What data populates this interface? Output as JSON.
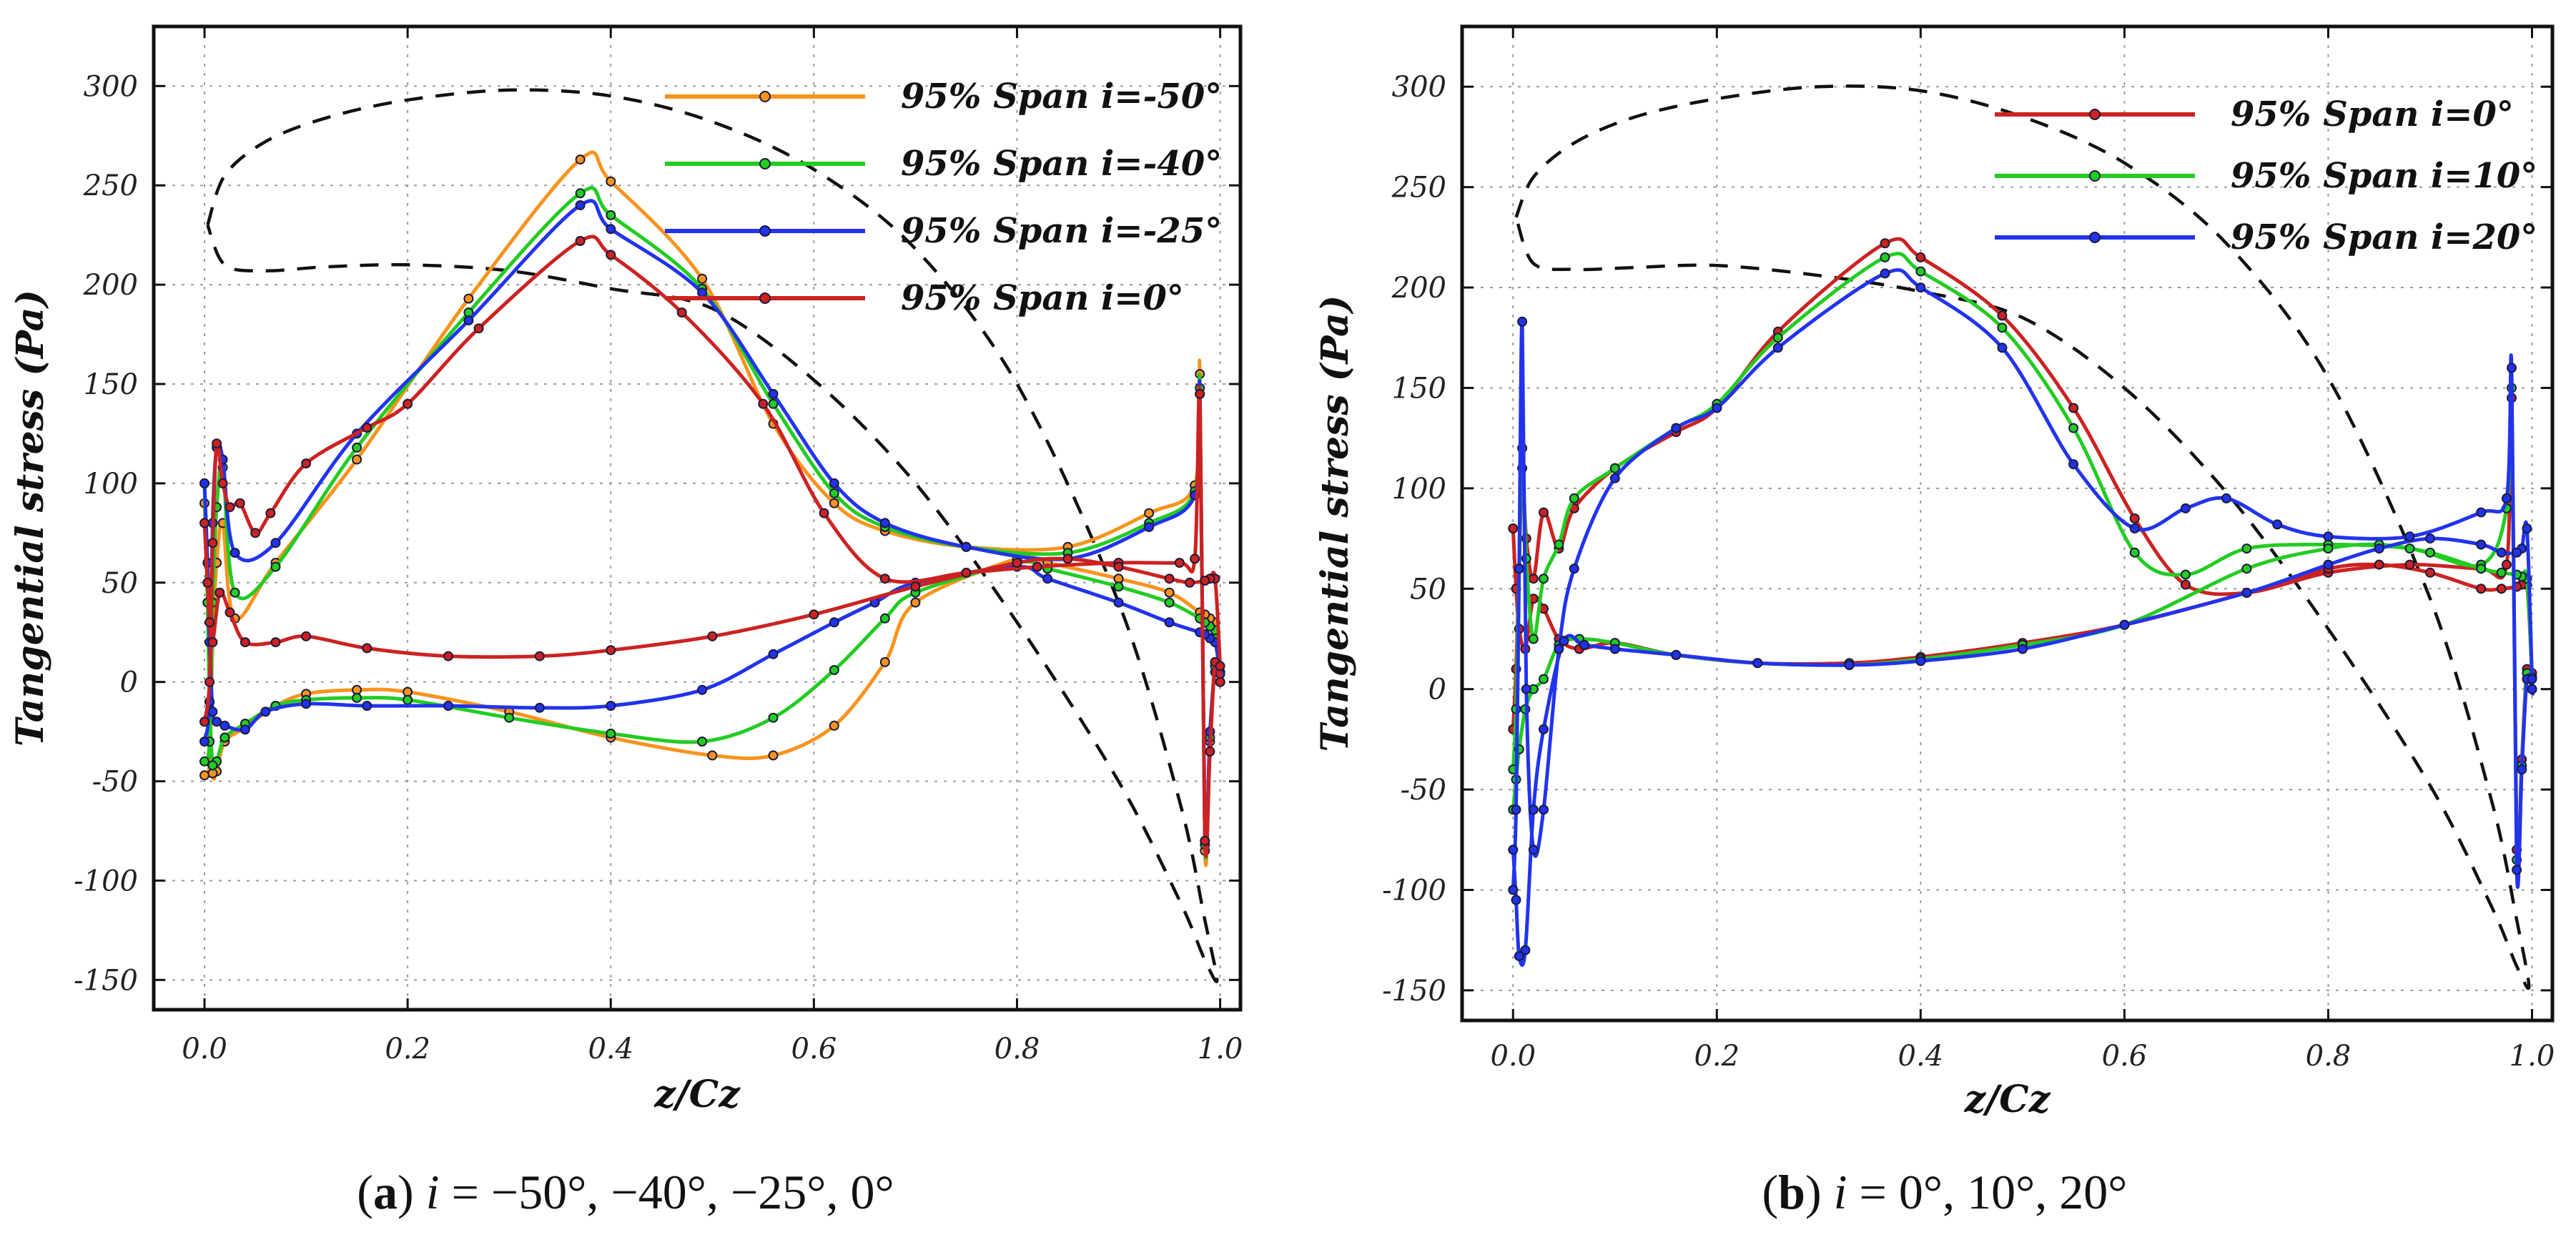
{
  "chart_data": [
    {
      "type": "line",
      "panel": "a",
      "caption": {
        "letter": "a",
        "open": "(",
        "close": ")",
        "var": "i",
        "rest": " = −50°, −40°, −25°, 0°"
      },
      "xlabel": "z/Cz",
      "ylabel": "Tangential stress (Pa)",
      "xlim": [
        -0.05,
        1.02
      ],
      "ylim": [
        -165,
        330
      ],
      "xticks": [
        0.0,
        0.2,
        0.4,
        0.6,
        0.8,
        1.0
      ],
      "xtick_labels": [
        "0.0",
        "0.2",
        "0.4",
        "0.6",
        "0.8",
        "1.0"
      ],
      "yticks": [
        -150,
        -100,
        -50,
        0,
        50,
        100,
        150,
        200,
        250,
        300
      ],
      "ytick_labels": [
        "-150",
        "-100",
        "-50",
        "0",
        "50",
        "100",
        "150",
        "200",
        "250",
        "300"
      ],
      "grid": true,
      "legend_position": "top-right",
      "profile": {
        "x": [
          0.003,
          0.02,
          0.06,
          0.12,
          0.2,
          0.3,
          0.4,
          0.5,
          0.6,
          0.7,
          0.8,
          0.9,
          0.96,
          0.985,
          0.997,
          0.985,
          0.96,
          0.9,
          0.8,
          0.7,
          0.6,
          0.5,
          0.4,
          0.3,
          0.2,
          0.12,
          0.06,
          0.02,
          0.003
        ],
        "y": [
          230,
          255,
          272,
          284,
          293,
          298,
          295,
          282,
          258,
          218,
          150,
          40,
          -60,
          -120,
          -150,
          -140,
          -110,
          -50,
          30,
          100,
          152,
          188,
          198,
          207,
          210,
          209,
          207,
          210,
          230
        ]
      },
      "series": [
        {
          "name": "95% Span i=-50°",
          "color": "#f7931e",
          "x": [
            0.0,
            0.005,
            0.008,
            0.012,
            0.018,
            0.03,
            0.07,
            0.15,
            0.26,
            0.37,
            0.4,
            0.49,
            0.56,
            0.62,
            0.67,
            0.75,
            0.85,
            0.93,
            0.975,
            0.98,
            0.985,
            0.99,
            0.995,
            1.0,
            1.0,
            0.995,
            0.99,
            0.985,
            0.98,
            0.95,
            0.9,
            0.83,
            0.8,
            0.7,
            0.67,
            0.62,
            0.56,
            0.5,
            0.4,
            0.3,
            0.2,
            0.15,
            0.1,
            0.07,
            0.04,
            0.02,
            0.012,
            0.008,
            0.005,
            0.003,
            0.0
          ],
          "y": [
            -47,
            -40,
            20,
            60,
            80,
            32,
            60,
            112,
            193,
            263,
            252,
            203,
            130,
            90,
            76,
            68,
            68,
            85,
            99,
            155,
            -85,
            -30,
            10,
            0,
            5,
            30,
            32,
            34,
            35,
            45,
            52,
            60,
            62,
            40,
            10,
            -22,
            -37,
            -37,
            -28,
            -15,
            -5,
            -4,
            -6,
            -12,
            -23,
            -30,
            -45,
            -46,
            -10,
            40,
            90
          ]
        },
        {
          "name": "95% Span i=-40°",
          "color": "#22cc22",
          "x": [
            0.0,
            0.005,
            0.008,
            0.012,
            0.018,
            0.03,
            0.07,
            0.15,
            0.26,
            0.37,
            0.4,
            0.49,
            0.56,
            0.62,
            0.67,
            0.75,
            0.85,
            0.93,
            0.975,
            0.98,
            0.985,
            0.99,
            0.995,
            1.0,
            1.0,
            0.995,
            0.99,
            0.985,
            0.98,
            0.95,
            0.9,
            0.83,
            0.8,
            0.7,
            0.67,
            0.62,
            0.56,
            0.49,
            0.4,
            0.3,
            0.2,
            0.15,
            0.1,
            0.07,
            0.04,
            0.02,
            0.012,
            0.008,
            0.005,
            0.003,
            0.0
          ],
          "y": [
            -40,
            -30,
            40,
            88,
            108,
            45,
            58,
            118,
            186,
            246,
            235,
            198,
            140,
            95,
            78,
            68,
            65,
            80,
            96,
            148,
            -82,
            -28,
            8,
            0,
            5,
            26,
            28,
            30,
            32,
            40,
            48,
            57,
            60,
            45,
            32,
            6,
            -18,
            -30,
            -26,
            -18,
            -9,
            -8,
            -9,
            -12,
            -21,
            -28,
            -40,
            -42,
            -10,
            40,
            100
          ]
        },
        {
          "name": "95% Span i=-25°",
          "color": "#2233ee",
          "x": [
            0.0,
            0.005,
            0.008,
            0.012,
            0.018,
            0.03,
            0.07,
            0.15,
            0.26,
            0.37,
            0.4,
            0.49,
            0.56,
            0.62,
            0.67,
            0.75,
            0.85,
            0.93,
            0.975,
            0.98,
            0.985,
            0.99,
            0.995,
            1.0,
            1.0,
            0.995,
            0.99,
            0.985,
            0.98,
            0.95,
            0.9,
            0.83,
            0.8,
            0.7,
            0.66,
            0.62,
            0.56,
            0.49,
            0.4,
            0.33,
            0.24,
            0.16,
            0.1,
            0.06,
            0.04,
            0.02,
            0.012,
            0.008,
            0.005,
            0.003,
            0.0
          ],
          "y": [
            -30,
            -10,
            80,
            118,
            112,
            65,
            70,
            125,
            182,
            240,
            228,
            196,
            145,
            100,
            80,
            68,
            62,
            78,
            94,
            145,
            -80,
            -25,
            5,
            0,
            4,
            20,
            22,
            24,
            25,
            30,
            40,
            52,
            58,
            50,
            40,
            30,
            14,
            -4,
            -12,
            -13,
            -12,
            -12,
            -11,
            -15,
            -24,
            -22,
            -20,
            -15,
            20,
            60,
            100
          ]
        },
        {
          "name": "95% Span i=0°",
          "color": "#cc2222",
          "x": [
            0.0,
            0.005,
            0.008,
            0.012,
            0.018,
            0.025,
            0.035,
            0.05,
            0.065,
            0.1,
            0.16,
            0.2,
            0.27,
            0.37,
            0.4,
            0.47,
            0.55,
            0.61,
            0.67,
            0.75,
            0.82,
            0.9,
            0.96,
            0.975,
            0.98,
            0.985,
            0.99,
            0.995,
            1.0,
            1.0,
            0.995,
            0.99,
            0.985,
            0.97,
            0.95,
            0.9,
            0.85,
            0.8,
            0.7,
            0.6,
            0.5,
            0.4,
            0.33,
            0.24,
            0.16,
            0.1,
            0.07,
            0.04,
            0.025,
            0.015,
            0.008,
            0.005,
            0.003,
            0.0
          ],
          "y": [
            -20,
            0,
            70,
            120,
            100,
            88,
            90,
            75,
            85,
            110,
            128,
            140,
            178,
            222,
            215,
            186,
            140,
            85,
            52,
            55,
            58,
            60,
            60,
            62,
            145,
            -80,
            -35,
            10,
            0,
            8,
            52,
            52,
            51,
            50,
            52,
            58,
            62,
            60,
            48,
            34,
            23,
            16,
            13,
            13,
            17,
            23,
            20,
            20,
            35,
            45,
            20,
            30,
            50,
            80
          ]
        }
      ]
    },
    {
      "type": "line",
      "panel": "b",
      "caption": {
        "letter": "b",
        "open": "(",
        "close": ")",
        "var": "i",
        "rest": " = 0°, 10°, 20°"
      },
      "xlabel": "z/Cz",
      "ylabel": "Tangential stress (Pa)",
      "xlim": [
        -0.05,
        1.02
      ],
      "ylim": [
        -165,
        330
      ],
      "xticks": [
        0.0,
        0.2,
        0.4,
        0.6,
        0.8,
        1.0
      ],
      "xtick_labels": [
        "0.0",
        "0.2",
        "0.4",
        "0.6",
        "0.8",
        "1.0"
      ],
      "yticks": [
        -150,
        -100,
        -50,
        0,
        50,
        100,
        150,
        200,
        250,
        300
      ],
      "ytick_labels": [
        "-150",
        "-100",
        "-50",
        "0",
        "50",
        "100",
        "150",
        "200",
        "250",
        "300"
      ],
      "grid": true,
      "legend_position": "top-right",
      "profile": {
        "x": [
          0.003,
          0.02,
          0.06,
          0.12,
          0.2,
          0.3,
          0.4,
          0.5,
          0.6,
          0.7,
          0.8,
          0.9,
          0.96,
          0.985,
          0.997,
          0.985,
          0.96,
          0.9,
          0.8,
          0.7,
          0.6,
          0.5,
          0.4,
          0.3,
          0.2,
          0.12,
          0.06,
          0.02,
          0.003
        ],
        "y": [
          235,
          255,
          272,
          285,
          294,
          300,
          298,
          285,
          262,
          222,
          155,
          45,
          -55,
          -115,
          -148,
          -138,
          -108,
          -48,
          30,
          98,
          150,
          185,
          198,
          206,
          211,
          210,
          209,
          212,
          235
        ]
      },
      "series": [
        {
          "name": "95% Span i=0°",
          "color": "#cc2222",
          "x": [
            0.0,
            0.003,
            0.006,
            0.009,
            0.013,
            0.02,
            0.03,
            0.045,
            0.06,
            0.1,
            0.16,
            0.2,
            0.26,
            0.365,
            0.4,
            0.48,
            0.55,
            0.61,
            0.66,
            0.72,
            0.8,
            0.88,
            0.95,
            0.975,
            0.98,
            0.985,
            0.99,
            0.995,
            1.0,
            1.0,
            0.995,
            0.99,
            0.985,
            0.97,
            0.95,
            0.9,
            0.85,
            0.8,
            0.72,
            0.6,
            0.5,
            0.4,
            0.33,
            0.24,
            0.16,
            0.1,
            0.065,
            0.045,
            0.03,
            0.02,
            0.012,
            0.006,
            0.003,
            0.0
          ],
          "y": [
            -20,
            10,
            60,
            110,
            75,
            55,
            88,
            70,
            90,
            110,
            128,
            140,
            178,
            222,
            215,
            186,
            140,
            85,
            52,
            48,
            58,
            62,
            60,
            62,
            145,
            -80,
            -35,
            10,
            0,
            8,
            52,
            52,
            51,
            50,
            50,
            58,
            62,
            60,
            48,
            32,
            23,
            16,
            13,
            13,
            17,
            23,
            20,
            25,
            40,
            45,
            20,
            30,
            50,
            80
          ]
        },
        {
          "name": "95% Span i=10°",
          "color": "#22cc22",
          "x": [
            0.0,
            0.003,
            0.006,
            0.009,
            0.013,
            0.02,
            0.03,
            0.045,
            0.06,
            0.1,
            0.16,
            0.2,
            0.26,
            0.365,
            0.4,
            0.48,
            0.55,
            0.61,
            0.66,
            0.72,
            0.8,
            0.88,
            0.95,
            0.975,
            0.98,
            0.985,
            0.99,
            0.995,
            1.0,
            1.0,
            0.995,
            0.99,
            0.985,
            0.97,
            0.95,
            0.9,
            0.85,
            0.8,
            0.72,
            0.6,
            0.5,
            0.4,
            0.33,
            0.24,
            0.16,
            0.1,
            0.065,
            0.045,
            0.03,
            0.02,
            0.012,
            0.006,
            0.003,
            0.0
          ],
          "y": [
            -40,
            -10,
            60,
            120,
            65,
            25,
            55,
            72,
            95,
            110,
            130,
            142,
            175,
            215,
            208,
            180,
            130,
            68,
            57,
            70,
            72,
            70,
            62,
            90,
            150,
            -85,
            -38,
            8,
            0,
            6,
            55,
            56,
            57,
            58,
            60,
            68,
            72,
            70,
            60,
            32,
            22,
            15,
            12,
            13,
            17,
            23,
            25,
            22,
            5,
            0,
            -10,
            -30,
            -45,
            -60
          ]
        },
        {
          "name": "95% Span i=20°",
          "color": "#2233ee",
          "x": [
            0.0,
            0.003,
            0.006,
            0.009,
            0.013,
            0.02,
            0.03,
            0.045,
            0.06,
            0.1,
            0.16,
            0.2,
            0.26,
            0.365,
            0.4,
            0.48,
            0.55,
            0.61,
            0.66,
            0.7,
            0.75,
            0.8,
            0.88,
            0.95,
            0.975,
            0.98,
            0.985,
            0.99,
            0.995,
            1.0,
            1.0,
            0.995,
            0.99,
            0.985,
            0.97,
            0.95,
            0.9,
            0.85,
            0.8,
            0.72,
            0.6,
            0.5,
            0.4,
            0.33,
            0.24,
            0.16,
            0.1,
            0.07,
            0.05,
            0.03,
            0.02,
            0.012,
            0.006,
            0.003,
            0.0
          ],
          "y": [
            -100,
            -60,
            60,
            183,
            0,
            -80,
            -60,
            20,
            60,
            105,
            130,
            140,
            170,
            207,
            200,
            170,
            112,
            80,
            90,
            95,
            82,
            76,
            76,
            88,
            95,
            160,
            -90,
            -40,
            5,
            0,
            5,
            80,
            70,
            68,
            68,
            72,
            75,
            70,
            62,
            48,
            32,
            20,
            14,
            12,
            13,
            17,
            20,
            22,
            24,
            -20,
            -60,
            -130,
            -133,
            -105,
            -80
          ]
        }
      ]
    }
  ]
}
